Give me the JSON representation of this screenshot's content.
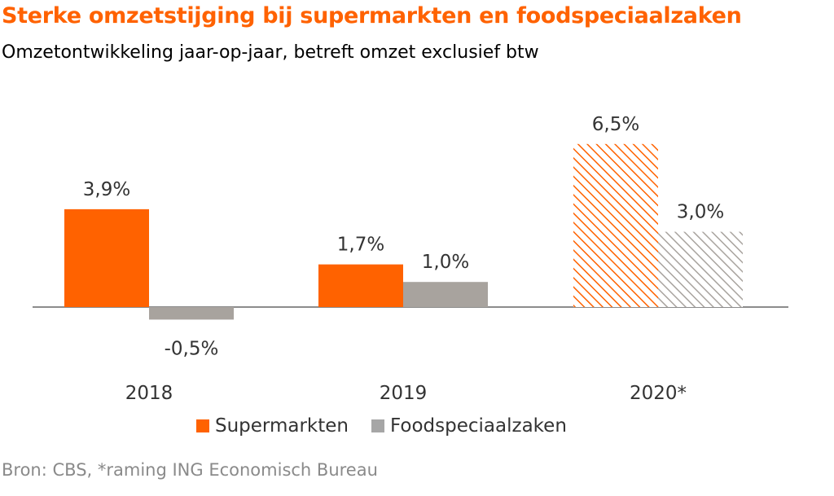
{
  "title": "Sterke omzetstijging bij supermarkten en foodspeciaalzaken",
  "subtitle": "Omzetontwikkeling jaar-op-jaar, betreft omzet exclusief btw",
  "source": "Bron: CBS, *raming ING Economisch Bureau",
  "colors": {
    "accent": "#ff6200",
    "supermarkten": "#ff6200",
    "foodspeciaalzaken": "#a8a39e",
    "legend_foodspeciaalzaken": "#a6a6a6"
  },
  "chart_data": {
    "type": "bar",
    "categories": [
      "2018",
      "2019",
      "2020*"
    ],
    "series": [
      {
        "name": "Supermarkten",
        "values": [
          3.9,
          1.7,
          6.5
        ],
        "labels": [
          "3,9%",
          "1,7%",
          "6,5%"
        ]
      },
      {
        "name": "Foodspeciaalzaken",
        "values": [
          -0.5,
          1.0,
          3.0
        ],
        "labels": [
          "-0,5%",
          "1,0%",
          "3,0%"
        ]
      }
    ],
    "forecast_categories": [
      "2020*"
    ],
    "forecast_style": "hatched",
    "unit": "%",
    "ylim": [
      -0.8,
      6.5
    ],
    "grid": false,
    "legend_position": "bottom",
    "xlabel": "",
    "ylabel": ""
  }
}
